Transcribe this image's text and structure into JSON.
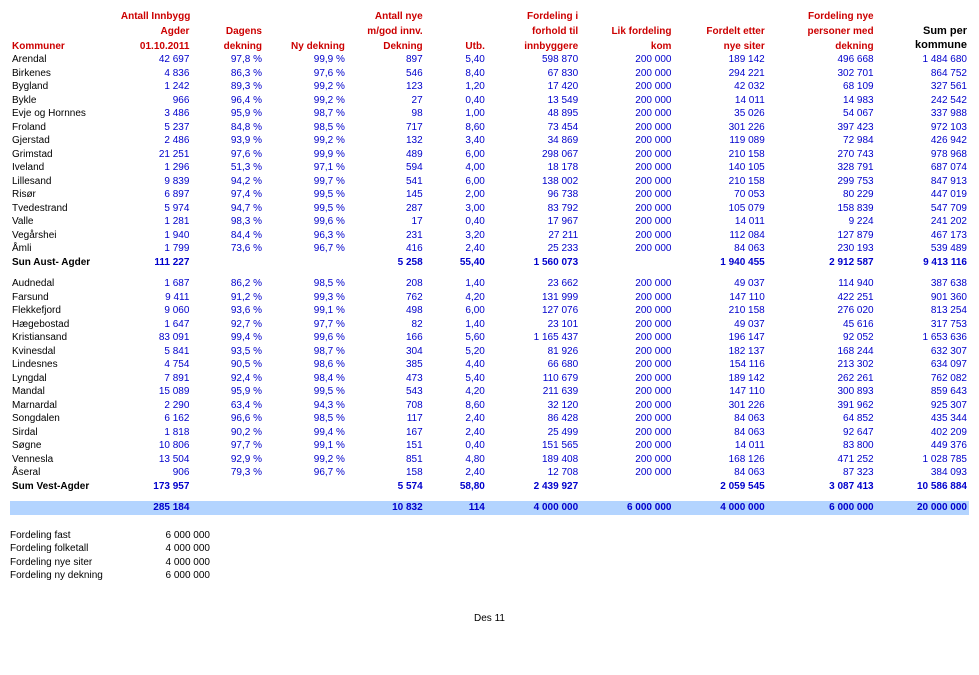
{
  "headers": {
    "kommuner_l1": "",
    "kommuner_l2": "",
    "kommuner_l3": "Kommuner",
    "antall_l1": "Antall Innbygg",
    "antall_l2": "Agder",
    "antall_l3": "01.10.2011",
    "dagens_l2": "Dagens",
    "dagens_l3": "dekning",
    "nydek_l3": "Ny dekning",
    "nye_l1": "Antall nye",
    "nye_l2": "m/god innv.",
    "nye_l3": "Dekning",
    "utb_l3": "Utb.",
    "fordi_l1": "Fordeling i",
    "fordi_l2": "forhold til",
    "fordi_l3": "innbyggere",
    "lik_l2": "Lik fordeling",
    "lik_l3": "kom",
    "etter_l2": "Fordelt etter",
    "etter_l3": "nye siter",
    "nyepers_l1": "Fordeling nye",
    "nyepers_l2": "personer med",
    "nyepers_l3": "dekning",
    "sum_l2": "Sum per",
    "sum_l3": "kommune"
  },
  "rows1": [
    [
      "Arendal",
      "42 697",
      "97,8 %",
      "99,9 %",
      "897",
      "5,40",
      "598 870",
      "200 000",
      "189 142",
      "496 668",
      "1 484 680"
    ],
    [
      "Birkenes",
      "4 836",
      "86,3 %",
      "97,6 %",
      "546",
      "8,40",
      "67 830",
      "200 000",
      "294 221",
      "302 701",
      "864 752"
    ],
    [
      "Bygland",
      "1 242",
      "89,3 %",
      "99,2 %",
      "123",
      "1,20",
      "17 420",
      "200 000",
      "42 032",
      "68 109",
      "327 561"
    ],
    [
      "Bykle",
      "966",
      "96,4 %",
      "99,2 %",
      "27",
      "0,40",
      "13 549",
      "200 000",
      "14 011",
      "14 983",
      "242 542"
    ],
    [
      "Evje og Hornnes",
      "3 486",
      "95,9 %",
      "98,7 %",
      "98",
      "1,00",
      "48 895",
      "200 000",
      "35 026",
      "54 067",
      "337 988"
    ],
    [
      "Froland",
      "5 237",
      "84,8 %",
      "98,5 %",
      "717",
      "8,60",
      "73 454",
      "200 000",
      "301 226",
      "397 423",
      "972 103"
    ],
    [
      "Gjerstad",
      "2 486",
      "93,9 %",
      "99,2 %",
      "132",
      "3,40",
      "34 869",
      "200 000",
      "119 089",
      "72 984",
      "426 942"
    ],
    [
      "Grimstad",
      "21 251",
      "97,6 %",
      "99,9 %",
      "489",
      "6,00",
      "298 067",
      "200 000",
      "210 158",
      "270 743",
      "978 968"
    ],
    [
      "Iveland",
      "1 296",
      "51,3 %",
      "97,1 %",
      "594",
      "4,00",
      "18 178",
      "200 000",
      "140 105",
      "328 791",
      "687 074"
    ],
    [
      "Lillesand",
      "9 839",
      "94,2 %",
      "99,7 %",
      "541",
      "6,00",
      "138 002",
      "200 000",
      "210 158",
      "299 753",
      "847 913"
    ],
    [
      "Risør",
      "6 897",
      "97,4 %",
      "99,5 %",
      "145",
      "2,00",
      "96 738",
      "200 000",
      "70 053",
      "80 229",
      "447 019"
    ],
    [
      "Tvedestrand",
      "5 974",
      "94,7 %",
      "99,5 %",
      "287",
      "3,00",
      "83 792",
      "200 000",
      "105 079",
      "158 839",
      "547 709"
    ],
    [
      "Valle",
      "1 281",
      "98,3 %",
      "99,6 %",
      "17",
      "0,40",
      "17 967",
      "200 000",
      "14 011",
      "9 224",
      "241 202"
    ],
    [
      "Vegårshei",
      "1 940",
      "84,4 %",
      "96,3 %",
      "231",
      "3,20",
      "27 211",
      "200 000",
      "112 084",
      "127 879",
      "467 173"
    ],
    [
      "Åmli",
      "1 799",
      "73,6 %",
      "96,7 %",
      "416",
      "2,40",
      "25 233",
      "200 000",
      "84 063",
      "230 193",
      "539 489"
    ]
  ],
  "sum1": [
    "Sun Aust- Agder",
    "111 227",
    "",
    "",
    "5 258",
    "55,40",
    "1 560 073",
    "",
    "1 940 455",
    "2 912 587",
    "9 413 116"
  ],
  "rows2": [
    [
      "Audnedal",
      "1 687",
      "86,2 %",
      "98,5 %",
      "208",
      "1,40",
      "23 662",
      "200 000",
      "49 037",
      "114 940",
      "387 638"
    ],
    [
      "Farsund",
      "9 411",
      "91,2 %",
      "99,3 %",
      "762",
      "4,20",
      "131 999",
      "200 000",
      "147 110",
      "422 251",
      "901 360"
    ],
    [
      "Flekkefjord",
      "9 060",
      "93,6 %",
      "99,1 %",
      "498",
      "6,00",
      "127 076",
      "200 000",
      "210 158",
      "276 020",
      "813 254"
    ],
    [
      "Hægebostad",
      "1 647",
      "92,7 %",
      "97,7 %",
      "82",
      "1,40",
      "23 101",
      "200 000",
      "49 037",
      "45 616",
      "317 753"
    ],
    [
      "Kristiansand",
      "83 091",
      "99,4 %",
      "99,6 %",
      "166",
      "5,60",
      "1 165 437",
      "200 000",
      "196 147",
      "92 052",
      "1 653 636"
    ],
    [
      "Kvinesdal",
      "5 841",
      "93,5 %",
      "98,7 %",
      "304",
      "5,20",
      "81 926",
      "200 000",
      "182 137",
      "168 244",
      "632 307"
    ],
    [
      "Lindesnes",
      "4 754",
      "90,5 %",
      "98,6 %",
      "385",
      "4,40",
      "66 680",
      "200 000",
      "154 116",
      "213 302",
      "634 097"
    ],
    [
      "Lyngdal",
      "7 891",
      "92,4 %",
      "98,4 %",
      "473",
      "5,40",
      "110 679",
      "200 000",
      "189 142",
      "262 261",
      "762 082"
    ],
    [
      "Mandal",
      "15 089",
      "95,9 %",
      "99,5 %",
      "543",
      "4,20",
      "211 639",
      "200 000",
      "147 110",
      "300 893",
      "859 643"
    ],
    [
      "Marnardal",
      "2 290",
      "63,4 %",
      "94,3 %",
      "708",
      "8,60",
      "32 120",
      "200 000",
      "301 226",
      "391 962",
      "925 307"
    ],
    [
      "Songdalen",
      "6 162",
      "96,6 %",
      "98,5 %",
      "117",
      "2,40",
      "86 428",
      "200 000",
      "84 063",
      "64 852",
      "435 344"
    ],
    [
      "Sirdal",
      "1 818",
      "90,2 %",
      "99,4 %",
      "167",
      "2,40",
      "25 499",
      "200 000",
      "84 063",
      "92 647",
      "402 209"
    ],
    [
      "Søgne",
      "10 806",
      "97,7 %",
      "99,1 %",
      "151",
      "0,40",
      "151 565",
      "200 000",
      "14 011",
      "83 800",
      "449 376"
    ],
    [
      "Vennesla",
      "13 504",
      "92,9 %",
      "99,2 %",
      "851",
      "4,80",
      "189 408",
      "200 000",
      "168 126",
      "471 252",
      "1 028 785"
    ],
    [
      "Åseral",
      "906",
      "79,3 %",
      "96,7 %",
      "158",
      "2,40",
      "12 708",
      "200 000",
      "84 063",
      "87 323",
      "384 093"
    ]
  ],
  "sum2": [
    "Sum Vest-Agder",
    "173 957",
    "",
    "",
    "5 574",
    "58,80",
    "2 439 927",
    "",
    "2 059 545",
    "3 087 413",
    "10 586 884"
  ],
  "totals": [
    "",
    "285 184",
    "",
    "",
    "10 832",
    "114",
    "4 000 000",
    "6 000 000",
    "4 000 000",
    "6 000 000",
    "20 000 000"
  ],
  "footer": [
    [
      "Fordeling fast",
      "6 000 000"
    ],
    [
      "Fordeling folketall",
      "4 000 000"
    ],
    [
      "Fordeling nye siter",
      "4 000 000"
    ],
    [
      "Fordeling ny dekning",
      "6 000 000"
    ]
  ],
  "bottom": "Des 11",
  "layout": {
    "columns": 11,
    "blue_cols": [
      1,
      2,
      3,
      4,
      5,
      6,
      7,
      8,
      9,
      10
    ],
    "right_cols": [
      1,
      2,
      3,
      4,
      5,
      6,
      7,
      8,
      9,
      10
    ]
  }
}
